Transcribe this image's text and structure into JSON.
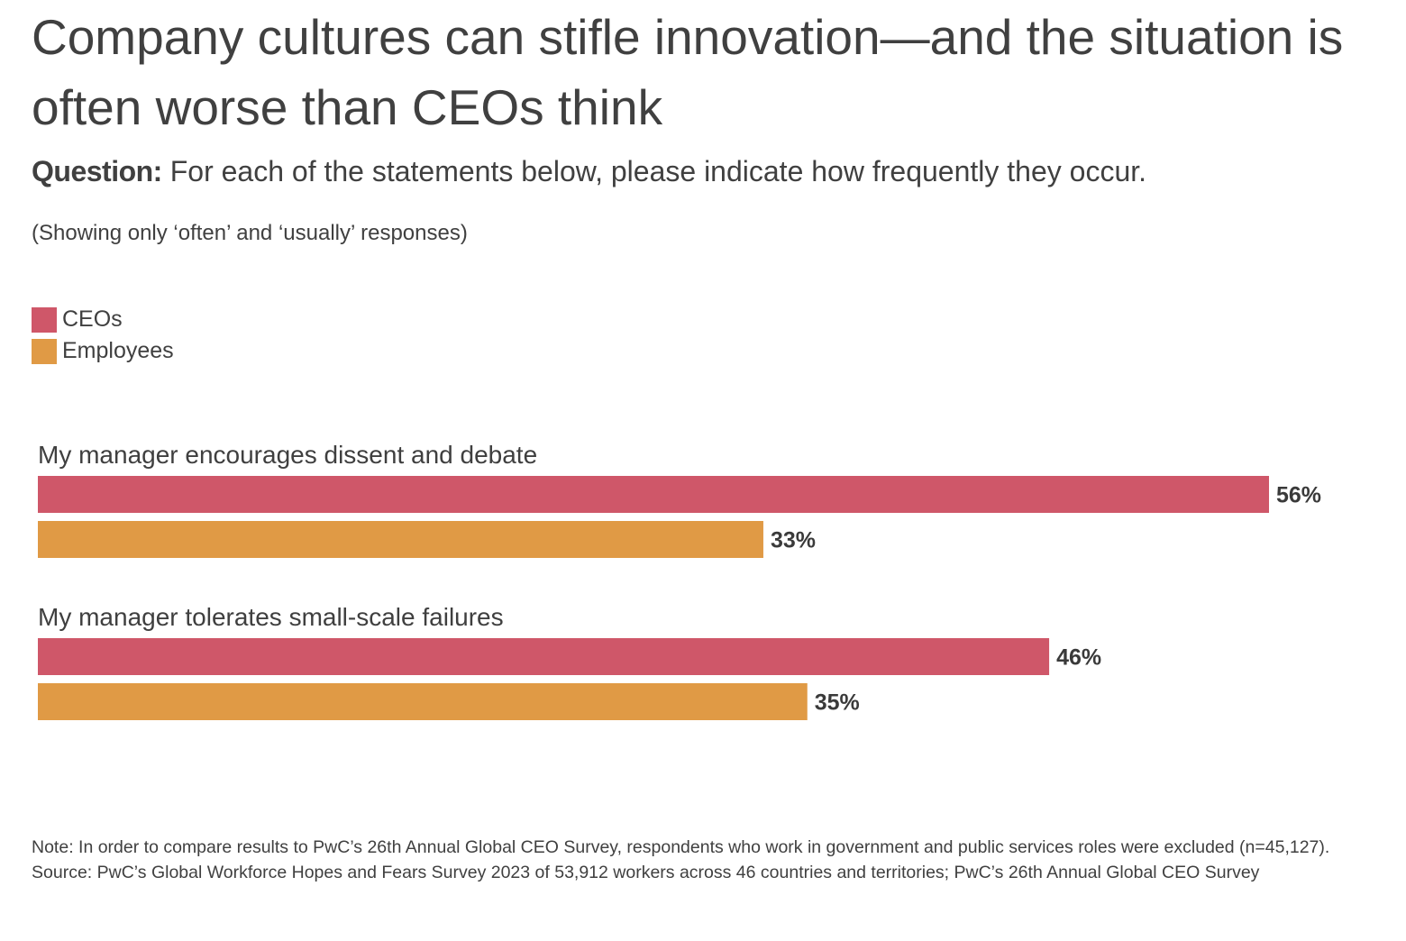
{
  "title": "Company cultures can stifle innovation—and the situation is often worse than CEOs think",
  "question": {
    "label": "Question:",
    "text": " For each of the statements below, please indicate how frequently they occur."
  },
  "subnote": "(Showing only ‘often’ and ‘usually’ responses)",
  "legend": [
    {
      "label": "CEOs",
      "color": "#cf5769"
    },
    {
      "label": "Employees",
      "color": "#e09a45"
    }
  ],
  "chart_data": {
    "type": "bar",
    "orientation": "horizontal",
    "categories": [
      "My manager encourages dissent and debate",
      "My manager tolerates small-scale failures"
    ],
    "series": [
      {
        "name": "CEOs",
        "color": "#cf5769",
        "values": [
          56,
          46
        ],
        "labels": [
          "56%",
          "46%"
        ]
      },
      {
        "name": "Employees",
        "color": "#e09a45",
        "values": [
          33,
          35
        ],
        "labels": [
          "33%",
          "35%"
        ]
      }
    ],
    "unit": "%",
    "xlim": [
      0,
      100
    ],
    "grid": false,
    "legend_position": "top-left"
  },
  "footnote": {
    "note": "Note: In order to compare results to PwC’s 26th Annual Global CEO Survey, respondents who work in government and public services roles were excluded (n=45,127).",
    "source": "Source: PwC’s Global Workforce Hopes and Fears Survey 2023 of 53,912 workers across 46 countries and territories; PwC’s 26th Annual Global CEO Survey"
  }
}
